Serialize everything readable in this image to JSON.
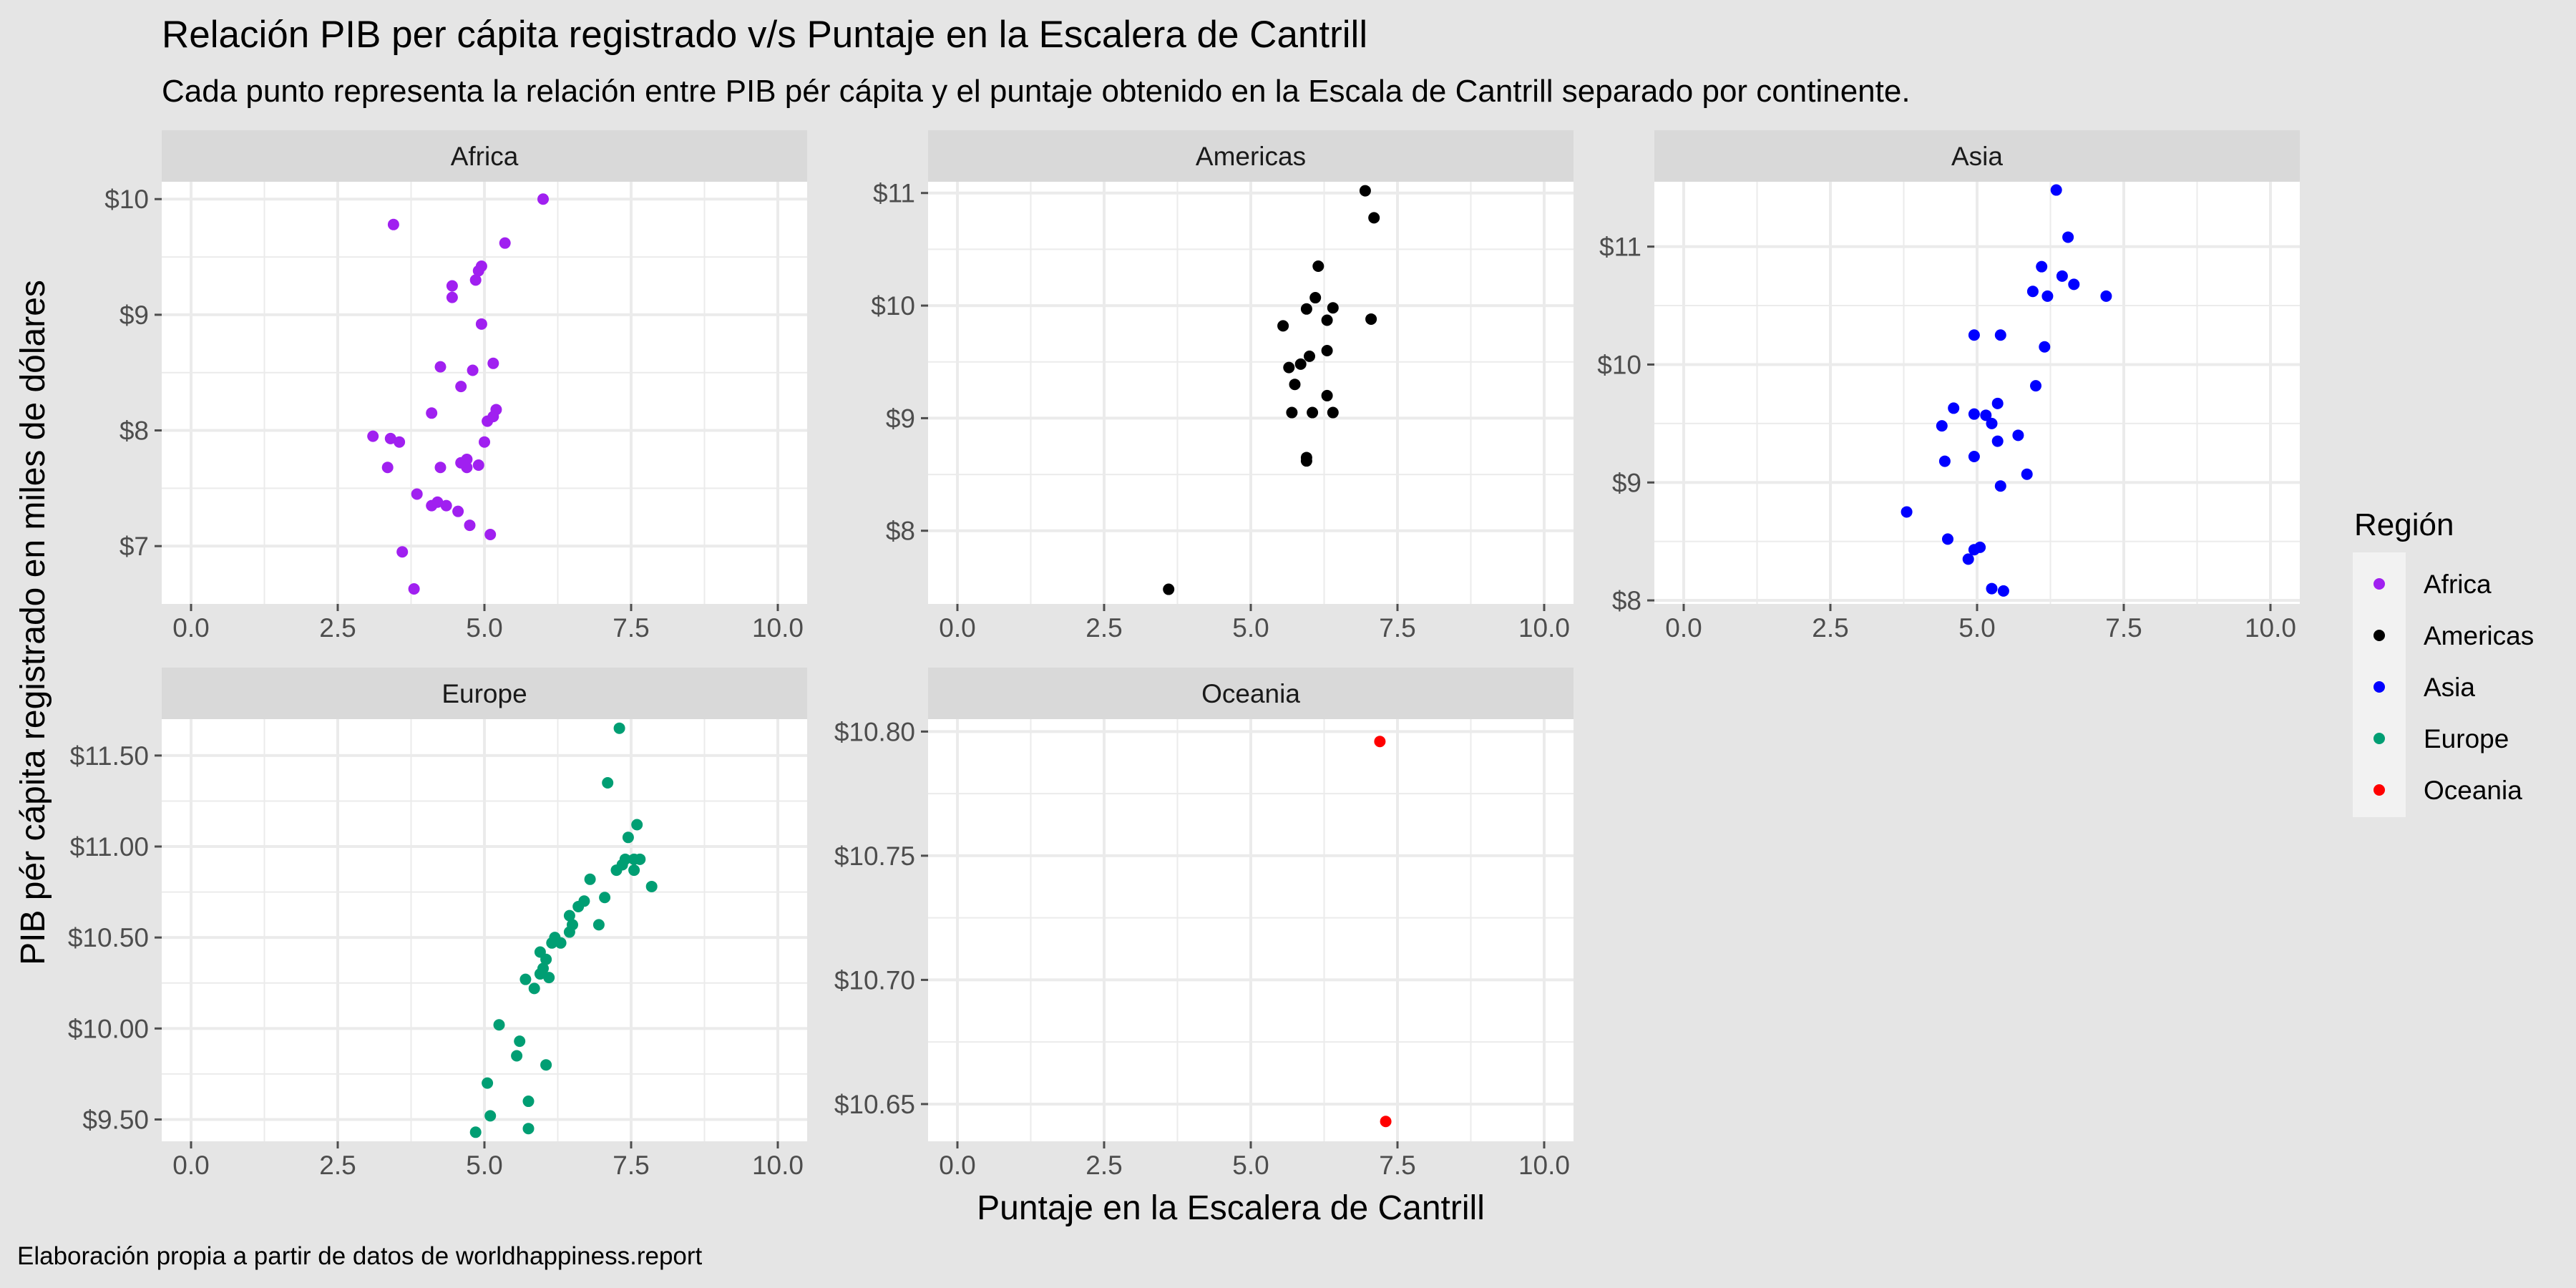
{
  "chart_data": {
    "type": "scatter",
    "title": "Relación PIB per cápita registrado v/s Puntaje en la Escalera de Cantrill",
    "subtitle": "Cada punto representa la relación entre PIB pér cápita y el puntaje obtenido en la Escala de Cantrill separado por continente.",
    "xlabel": "Puntaje en la Escalera de Cantrill",
    "ylabel": "PIB pér cápita registrado en miles de dólares",
    "caption": "Elaboración propia a partir de datos de worldhappiness.report",
    "legend": {
      "title": "Región",
      "position": "right",
      "entries": [
        {
          "label": "Africa",
          "color": "#a020f0"
        },
        {
          "label": "Americas",
          "color": "#000000"
        },
        {
          "label": "Asia",
          "color": "#0000ff"
        },
        {
          "label": "Europe",
          "color": "#009e73"
        },
        {
          "label": "Oceania",
          "color": "#ff0000"
        }
      ]
    },
    "grid": true,
    "xlim": [
      -0.5,
      10.5
    ],
    "x_ticks": [
      "0.0",
      "2.5",
      "5.0",
      "7.5",
      "10.0"
    ],
    "x_tick_values": [
      0,
      2.5,
      5,
      7.5,
      10
    ],
    "panels": [
      {
        "name": "Africa",
        "color": "#a020f0",
        "ylim": [
          6.5,
          10.15
        ],
        "y_ticks": [
          7,
          8,
          9,
          10
        ],
        "y_tick_labels": [
          "$7",
          "$8",
          "$9",
          "$10"
        ],
        "points": [
          [
            6.0,
            10.0
          ],
          [
            3.45,
            9.78
          ],
          [
            5.35,
            9.62
          ],
          [
            4.95,
            9.42
          ],
          [
            4.9,
            9.38
          ],
          [
            4.85,
            9.3
          ],
          [
            4.45,
            9.25
          ],
          [
            4.45,
            9.15
          ],
          [
            4.95,
            8.92
          ],
          [
            5.15,
            8.58
          ],
          [
            4.25,
            8.55
          ],
          [
            4.8,
            8.52
          ],
          [
            4.6,
            8.38
          ],
          [
            5.2,
            8.18
          ],
          [
            4.1,
            8.15
          ],
          [
            5.15,
            8.12
          ],
          [
            5.05,
            8.08
          ],
          [
            3.1,
            7.95
          ],
          [
            3.4,
            7.93
          ],
          [
            3.55,
            7.9
          ],
          [
            5.0,
            7.9
          ],
          [
            4.7,
            7.75
          ],
          [
            4.6,
            7.72
          ],
          [
            4.9,
            7.7
          ],
          [
            4.7,
            7.68
          ],
          [
            3.35,
            7.68
          ],
          [
            4.25,
            7.68
          ],
          [
            3.85,
            7.45
          ],
          [
            4.2,
            7.38
          ],
          [
            4.1,
            7.35
          ],
          [
            4.35,
            7.35
          ],
          [
            4.55,
            7.3
          ],
          [
            4.75,
            7.18
          ],
          [
            5.1,
            7.1
          ],
          [
            3.6,
            6.95
          ],
          [
            3.8,
            6.63
          ]
        ]
      },
      {
        "name": "Americas",
        "color": "#000000",
        "ylim": [
          7.35,
          11.1
        ],
        "y_ticks": [
          8,
          9,
          10,
          11
        ],
        "y_tick_labels": [
          "$8",
          "$9",
          "$10",
          "$11"
        ],
        "points": [
          [
            6.95,
            11.02
          ],
          [
            7.1,
            10.78
          ],
          [
            6.15,
            10.35
          ],
          [
            6.1,
            10.07
          ],
          [
            6.4,
            9.98
          ],
          [
            5.95,
            9.97
          ],
          [
            7.05,
            9.88
          ],
          [
            6.3,
            9.87
          ],
          [
            5.55,
            9.82
          ],
          [
            6.3,
            9.6
          ],
          [
            6.0,
            9.55
          ],
          [
            5.85,
            9.48
          ],
          [
            5.65,
            9.45
          ],
          [
            5.75,
            9.3
          ],
          [
            6.3,
            9.2
          ],
          [
            5.7,
            9.05
          ],
          [
            6.05,
            9.05
          ],
          [
            6.4,
            9.05
          ],
          [
            5.95,
            8.65
          ],
          [
            5.95,
            8.62
          ],
          [
            3.6,
            7.48
          ]
        ]
      },
      {
        "name": "Asia",
        "color": "#0000ff",
        "ylim": [
          7.97,
          11.55
        ],
        "y_ticks": [
          8,
          9,
          10,
          11
        ],
        "y_tick_labels": [
          "$8",
          "$9",
          "$10",
          "$11"
        ],
        "points": [
          [
            6.35,
            11.48
          ],
          [
            6.55,
            11.08
          ],
          [
            6.1,
            10.83
          ],
          [
            6.45,
            10.75
          ],
          [
            6.65,
            10.68
          ],
          [
            5.95,
            10.62
          ],
          [
            6.2,
            10.58
          ],
          [
            7.2,
            10.58
          ],
          [
            4.95,
            10.25
          ],
          [
            5.4,
            10.25
          ],
          [
            6.15,
            10.15
          ],
          [
            6.0,
            9.82
          ],
          [
            5.35,
            9.67
          ],
          [
            4.6,
            9.63
          ],
          [
            4.95,
            9.58
          ],
          [
            5.15,
            9.57
          ],
          [
            5.25,
            9.5
          ],
          [
            4.4,
            9.48
          ],
          [
            5.7,
            9.4
          ],
          [
            5.35,
            9.35
          ],
          [
            4.45,
            9.18
          ],
          [
            4.95,
            9.22
          ],
          [
            5.85,
            9.07
          ],
          [
            5.4,
            8.97
          ],
          [
            3.8,
            8.75
          ],
          [
            4.5,
            8.52
          ],
          [
            5.05,
            8.45
          ],
          [
            4.95,
            8.43
          ],
          [
            4.85,
            8.35
          ],
          [
            5.25,
            8.1
          ],
          [
            5.45,
            8.08
          ]
        ]
      },
      {
        "name": "Europe",
        "color": "#009e73",
        "ylim": [
          9.38,
          11.7
        ],
        "y_ticks": [
          9.5,
          10.0,
          10.5,
          11.0,
          11.5
        ],
        "y_tick_labels": [
          "$9.50",
          "$10.00",
          "$10.50",
          "$11.00",
          "$11.50"
        ],
        "points": [
          [
            7.3,
            11.65
          ],
          [
            7.1,
            11.35
          ],
          [
            7.6,
            11.12
          ],
          [
            7.45,
            11.05
          ],
          [
            7.55,
            10.93
          ],
          [
            7.4,
            10.93
          ],
          [
            7.65,
            10.93
          ],
          [
            7.35,
            10.9
          ],
          [
            7.25,
            10.87
          ],
          [
            7.55,
            10.87
          ],
          [
            7.85,
            10.78
          ],
          [
            6.8,
            10.82
          ],
          [
            7.05,
            10.72
          ],
          [
            6.7,
            10.7
          ],
          [
            6.6,
            10.67
          ],
          [
            6.45,
            10.62
          ],
          [
            6.5,
            10.57
          ],
          [
            6.95,
            10.57
          ],
          [
            6.45,
            10.53
          ],
          [
            6.2,
            10.5
          ],
          [
            6.15,
            10.47
          ],
          [
            6.3,
            10.47
          ],
          [
            5.95,
            10.42
          ],
          [
            6.05,
            10.38
          ],
          [
            6.0,
            10.33
          ],
          [
            5.95,
            10.3
          ],
          [
            6.1,
            10.28
          ],
          [
            5.7,
            10.27
          ],
          [
            5.85,
            10.22
          ],
          [
            5.25,
            10.02
          ],
          [
            5.6,
            9.93
          ],
          [
            5.55,
            9.85
          ],
          [
            6.05,
            9.8
          ],
          [
            5.05,
            9.7
          ],
          [
            5.75,
            9.6
          ],
          [
            5.1,
            9.52
          ],
          [
            4.85,
            9.43
          ],
          [
            5.75,
            9.45
          ]
        ]
      },
      {
        "name": "Oceania",
        "color": "#ff0000",
        "ylim": [
          10.635,
          10.805
        ],
        "y_ticks": [
          10.65,
          10.7,
          10.75,
          10.8
        ],
        "y_tick_labels": [
          "$10.65",
          "$10.70",
          "$10.75",
          "$10.80"
        ],
        "points": [
          [
            7.2,
            10.796
          ],
          [
            7.3,
            10.643
          ]
        ]
      }
    ]
  }
}
